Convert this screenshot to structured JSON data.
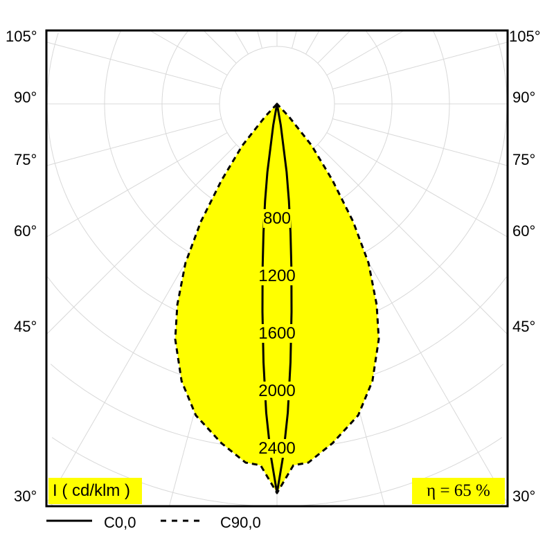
{
  "chart_data": {
    "type": "polar",
    "title": "",
    "unit_label": "I ( cd/klm )",
    "efficiency_label": "η = 65 %",
    "angle_labels": [
      "105°",
      "90°",
      "75°",
      "60°",
      "45°",
      "30°"
    ],
    "intensity_ticks": [
      "800",
      "1200",
      "1600",
      "2000",
      "2400"
    ],
    "intensity_grid_step": 400,
    "angle_grid_step_deg": 15,
    "fill_color": "#ffff00",
    "series": [
      {
        "name": "C0,0",
        "style": "solid",
        "angles": [
          0,
          1,
          2,
          3,
          4,
          5,
          6,
          7,
          8,
          10,
          12
        ],
        "values": [
          2708,
          2450,
          2150,
          1800,
          1450,
          1150,
          900,
          680,
          480,
          150,
          0
        ]
      },
      {
        "name": "C90,0",
        "style": "dashed",
        "angles": [
          0,
          2.6,
          5,
          9.3,
          14.6,
          19,
          23.4,
          26.4,
          29.9,
          32.9,
          36,
          39.8,
          43,
          45
        ],
        "values": [
          2708,
          2518,
          2506,
          2393,
          2240,
          2040,
          1784,
          1560,
          1278,
          975,
          655,
          376,
          120,
          0
        ]
      }
    ]
  }
}
